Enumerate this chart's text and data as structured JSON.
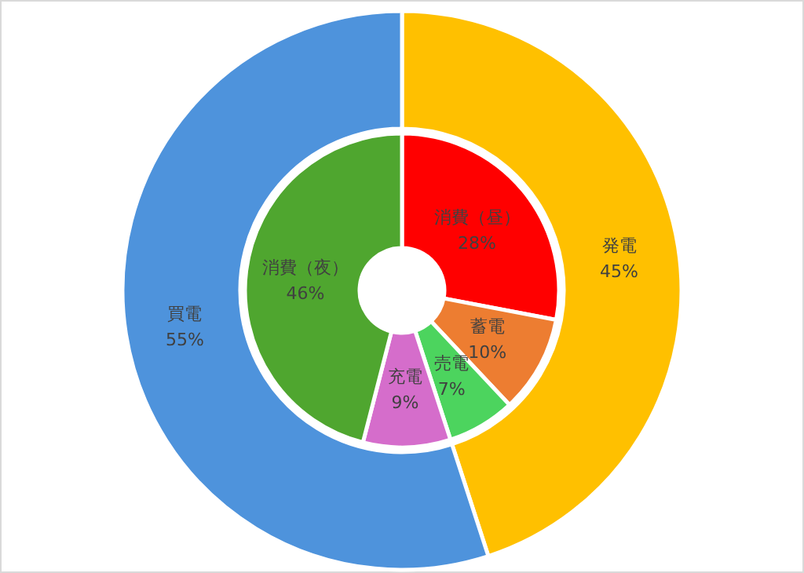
{
  "chart_data": [
    {
      "type": "donut",
      "categories": [
        "発電",
        "買電"
      ],
      "values": [
        45,
        55
      ],
      "colors": [
        "#ffc000",
        "#4e93dc"
      ],
      "value_labels": [
        "45%",
        "55%"
      ]
    },
    {
      "type": "donut",
      "categories": [
        "消費（昼）",
        "蓄電",
        "売電",
        "充電",
        "消費（夜）"
      ],
      "values": [
        28,
        10,
        7,
        9,
        46
      ],
      "colors": [
        "#ff0000",
        "#ed7d31",
        "#4cd45e",
        "#d56dcb",
        "#4fa62f"
      ],
      "value_labels": [
        "28%",
        "10%",
        "7%",
        "9%",
        "46%"
      ]
    }
  ]
}
